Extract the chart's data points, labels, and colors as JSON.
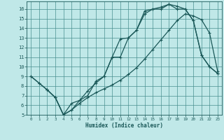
{
  "xlabel": "Humidex (Indice chaleur)",
  "bg_color": "#c0e8e8",
  "grid_color": "#4a9090",
  "line_color": "#1a5858",
  "xlim": [
    -0.5,
    23.5
  ],
  "ylim": [
    5,
    16.8
  ],
  "xticks": [
    0,
    1,
    2,
    3,
    4,
    5,
    6,
    7,
    8,
    9,
    10,
    11,
    12,
    13,
    14,
    15,
    16,
    17,
    18,
    19,
    20,
    21,
    22,
    23
  ],
  "yticks": [
    5,
    6,
    7,
    8,
    9,
    10,
    11,
    12,
    13,
    14,
    15,
    16
  ],
  "curve1_x": [
    0,
    1,
    2,
    3,
    4,
    5,
    6,
    7,
    8,
    9,
    10,
    11,
    12,
    13,
    14,
    15,
    16,
    17,
    18,
    19,
    20,
    21,
    22,
    23
  ],
  "curve1_y": [
    9.0,
    8.3,
    7.6,
    6.8,
    5.0,
    5.5,
    6.5,
    7.0,
    8.5,
    9.0,
    11.0,
    12.9,
    13.0,
    13.8,
    15.8,
    16.0,
    16.0,
    16.5,
    16.3,
    16.0,
    14.8,
    11.2,
    10.0,
    9.3
  ],
  "curve2_x": [
    0,
    1,
    2,
    3,
    4,
    5,
    6,
    7,
    8,
    9,
    10,
    11,
    12,
    13,
    14,
    15,
    16,
    17,
    18,
    19,
    20,
    21,
    22,
    23
  ],
  "curve2_y": [
    9.0,
    8.3,
    7.6,
    6.8,
    5.0,
    5.5,
    6.2,
    6.8,
    7.3,
    7.7,
    8.1,
    8.6,
    9.2,
    9.9,
    10.8,
    11.8,
    12.8,
    13.8,
    14.8,
    15.5,
    15.3,
    14.9,
    13.5,
    9.5
  ],
  "curve3_x": [
    2,
    3,
    4,
    5,
    6,
    7,
    8,
    9,
    10,
    11,
    12,
    13,
    14,
    15,
    16,
    17,
    18,
    19,
    20,
    21,
    22,
    23
  ],
  "curve3_y": [
    7.6,
    6.8,
    5.0,
    6.2,
    6.5,
    7.5,
    8.3,
    9.0,
    11.0,
    11.0,
    13.0,
    13.8,
    15.5,
    16.0,
    16.2,
    16.5,
    16.0,
    16.0,
    14.8,
    11.2,
    10.0,
    9.3
  ]
}
